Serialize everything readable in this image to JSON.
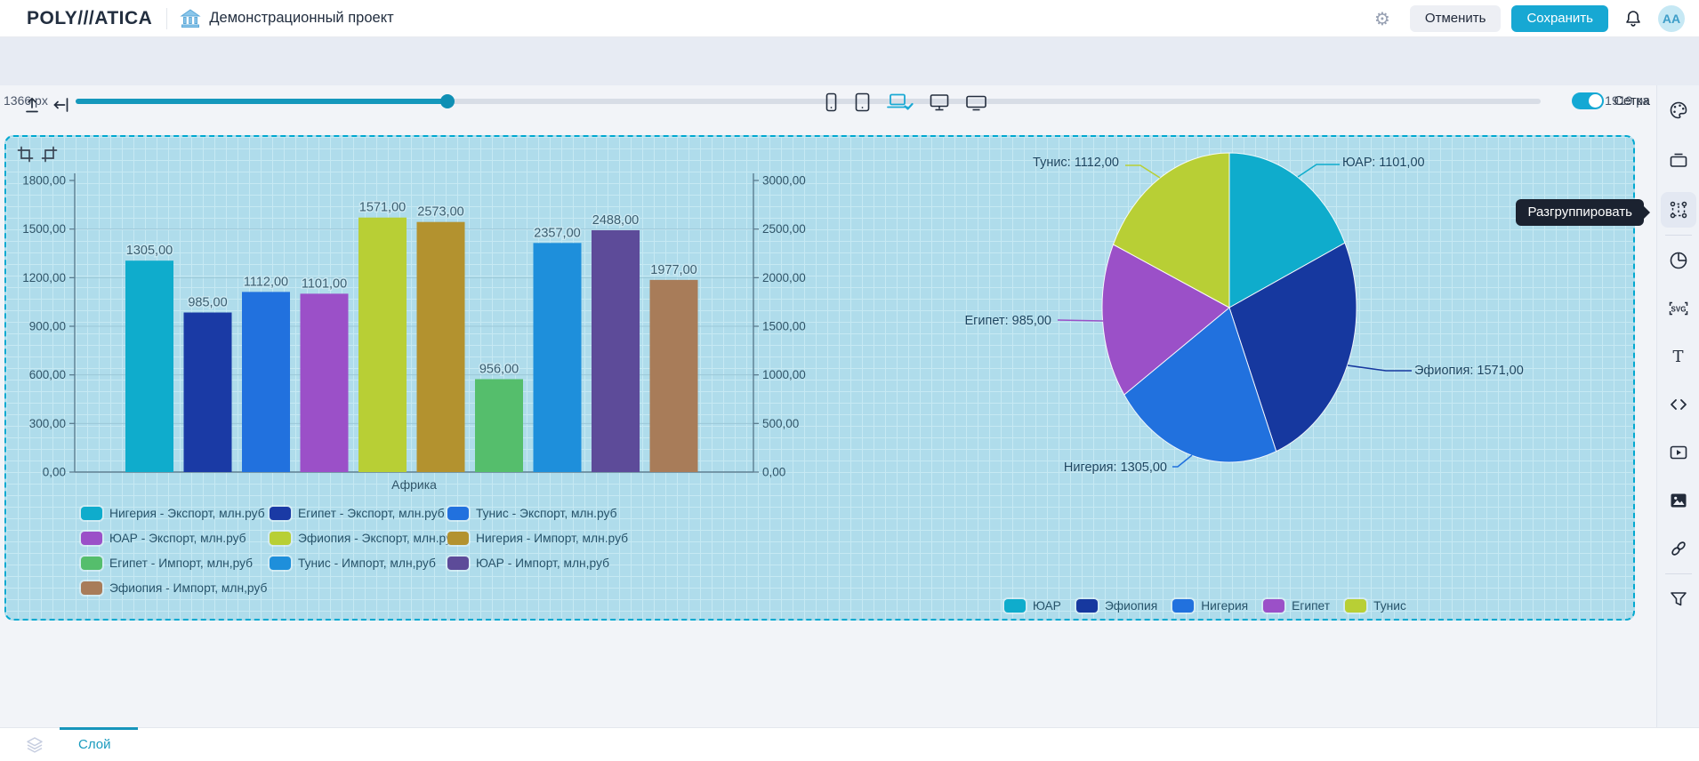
{
  "header": {
    "logo": "POLY///ATICA",
    "project_icon": "bank-icon",
    "title": "Демонстрационный проект",
    "cancel_label": "Отменить",
    "save_label": "Сохранить",
    "avatar": "AA"
  },
  "toolbar": {
    "grid_toggle_label": "Сетка",
    "grid_toggle_on": true,
    "devices": [
      "phone",
      "tablet",
      "laptop",
      "desktop",
      "tv"
    ],
    "active_device": "laptop",
    "left_icons": [
      "upload-icon",
      "indent-left-icon"
    ]
  },
  "width_slider": {
    "min_label": "1366 px",
    "max_label": "1919 px"
  },
  "tooltip": {
    "text": "Разгруппировать"
  },
  "sidebar": {
    "icons": [
      "palette",
      "frame",
      "group",
      "pie-chart",
      "svg",
      "text",
      "code",
      "video",
      "image",
      "link",
      "filter"
    ],
    "active": "group"
  },
  "bottom_bar": {
    "layer_tab_label": "Слой",
    "layer_tab_icon": "layers-icon"
  },
  "colors": {
    "accent_teal": "#17A8D3",
    "selection_border": "#00A8D0",
    "canvas_bg": "#AFDCEB",
    "tooltip_bg": "#1B2230"
  },
  "chart_data": [
    {
      "type": "bar",
      "categories": [
        "Африка"
      ],
      "series": [
        {
          "name": "Нигерия - Экспорт, млн.руб",
          "value": 1305,
          "label": "1305,00",
          "color": "#0FACCC",
          "axis": "left"
        },
        {
          "name": "Египет - Экспорт, млн.руб",
          "value": 985,
          "label": "985,00",
          "color": "#1A3AA5",
          "axis": "left"
        },
        {
          "name": "Тунис - Экспорт, млн.руб",
          "value": 1112,
          "label": "1112,00",
          "color": "#2171DE",
          "axis": "left"
        },
        {
          "name": "ЮАР - Экспорт, млн.руб",
          "value": 1101,
          "label": "1101,00",
          "color": "#9B50C8",
          "axis": "left"
        },
        {
          "name": "Эфиопия - Экспорт, млн.руб",
          "value": 1571,
          "label": "1571,00",
          "color": "#B8CF35",
          "axis": "left"
        },
        {
          "name": "Нигерия - Импорт, млн.руб",
          "value": 2573,
          "label": "2573,00",
          "color": "#B3922F",
          "axis": "right"
        },
        {
          "name": "Египет - Импорт, млн,руб",
          "value": 956,
          "label": "956,00",
          "color": "#55BE6C",
          "axis": "right"
        },
        {
          "name": "Тунис - Импорт, млн,руб",
          "value": 2357,
          "label": "2357,00",
          "color": "#1E8FDB",
          "axis": "right"
        },
        {
          "name": "ЮАР - Импорт, млн,руб",
          "value": 2488,
          "label": "2488,00",
          "color": "#5D4B99",
          "axis": "right"
        },
        {
          "name": "Эфиопия - Импорт, млн,руб",
          "value": 1977,
          "label": "1977,00",
          "color": "#A87C59",
          "axis": "right"
        }
      ],
      "left_axis": {
        "min": 0,
        "max": 1800,
        "ticks": [
          "0,00",
          "300,00",
          "600,00",
          "900,00",
          "1200,00",
          "1500,00",
          "1800,00"
        ]
      },
      "right_axis": {
        "min": 0,
        "max": 3000,
        "ticks": [
          "0,00",
          "500,00",
          "1000,00",
          "1500,00",
          "2000,00",
          "2500,00",
          "3000,00"
        ]
      },
      "grid": true,
      "legend_position": "bottom"
    },
    {
      "type": "pie",
      "slices": [
        {
          "name": "ЮАР",
          "value": 1101,
          "label": "ЮАР: 1101,00",
          "color": "#0FACCC"
        },
        {
          "name": "Эфиопия",
          "value": 1571,
          "label": "Эфиопия: 1571,00",
          "color": "#16389F"
        },
        {
          "name": "Нигерия",
          "value": 1305,
          "label": "Нигерия: 1305,00",
          "color": "#2171DE"
        },
        {
          "name": "Египет",
          "value": 985,
          "label": "Египет: 985,00",
          "color": "#9B50C8"
        },
        {
          "name": "Тунис",
          "value": 1112,
          "label": "Тунис: 1112,00",
          "color": "#B8CF35"
        }
      ],
      "legend": [
        "ЮАР",
        "Эфиопия",
        "Нигерия",
        "Египет",
        "Тунис"
      ],
      "legend_position": "bottom"
    }
  ]
}
